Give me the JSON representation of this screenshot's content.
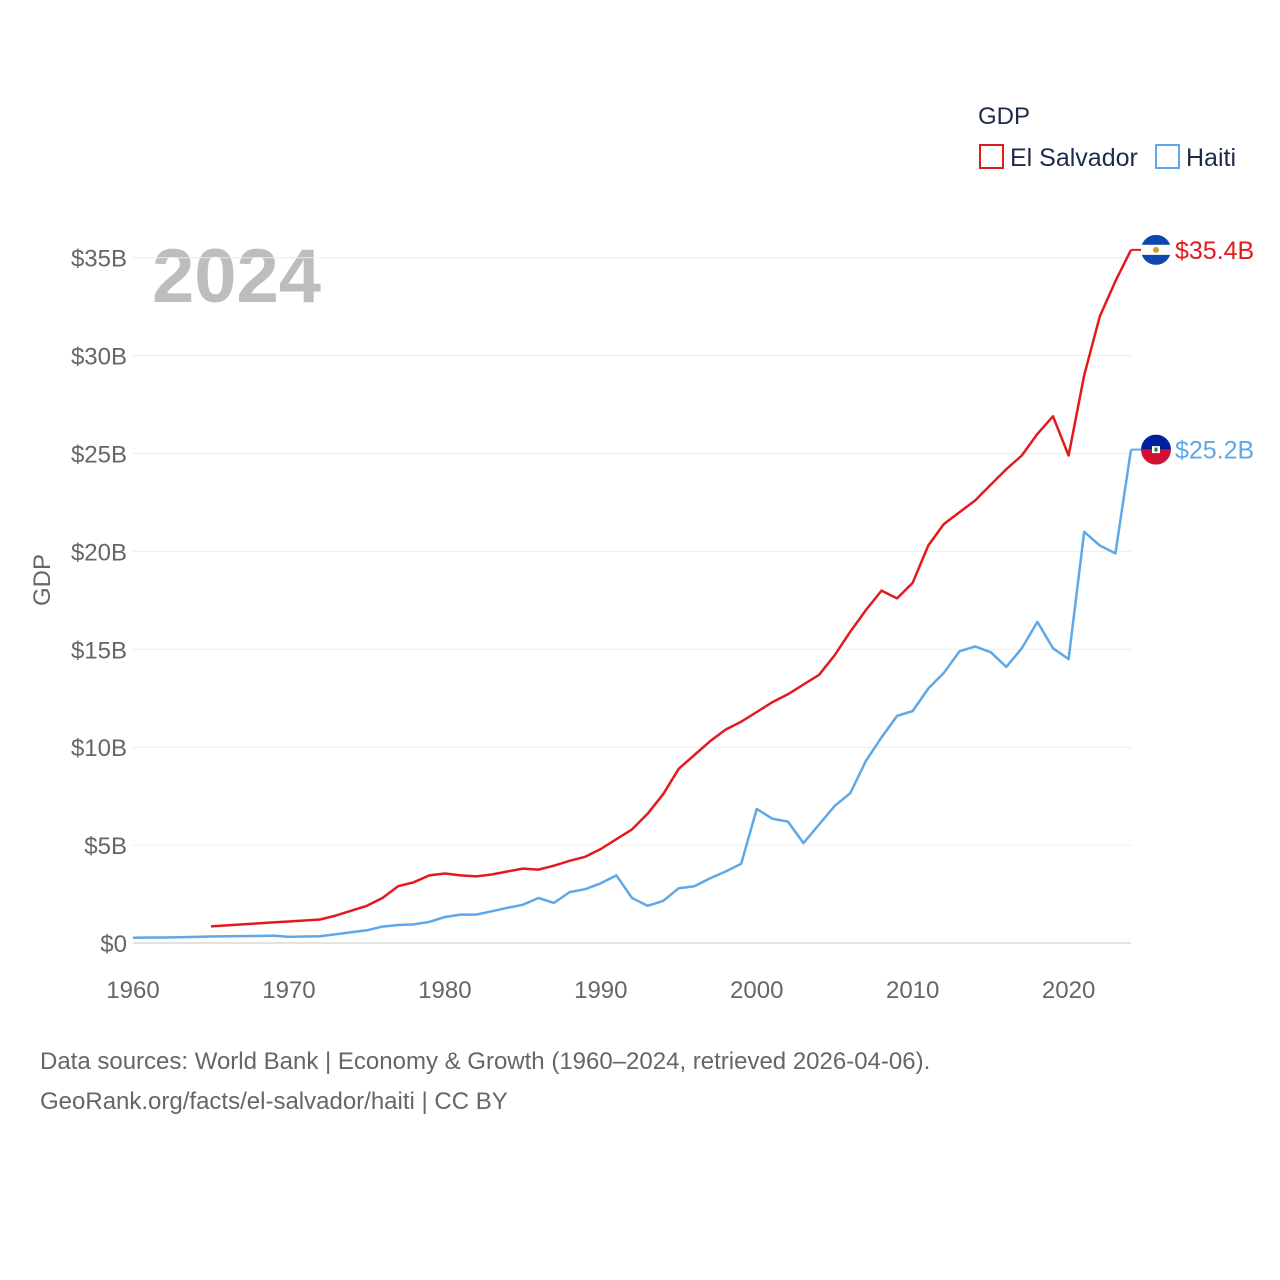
{
  "chart_data": {
    "type": "line",
    "year_label": "2024",
    "ylabel": "GDP",
    "xlim": [
      1960,
      2024
    ],
    "ylim": [
      0,
      35
    ],
    "x_ticks": [
      "1960",
      "1970",
      "1980",
      "1990",
      "2000",
      "2010",
      "2020"
    ],
    "x_tick_values": [
      1960,
      1970,
      1980,
      1990,
      2000,
      2010,
      2020
    ],
    "y_ticks": [
      "$0",
      "$5B",
      "$10B",
      "$15B",
      "$20B",
      "$25B",
      "$30B",
      "$35B"
    ],
    "y_tick_values": [
      0,
      5,
      10,
      15,
      20,
      25,
      30,
      35
    ],
    "legend": {
      "title": "GDP",
      "position": "top-right"
    },
    "series": [
      {
        "name": "El Salvador",
        "color": "#e31a1c",
        "end_label": "$35.4B",
        "flag": "el-salvador-flag-icon",
        "x": [
          1965,
          1966,
          1967,
          1968,
          1969,
          1970,
          1971,
          1972,
          1973,
          1974,
          1975,
          1976,
          1977,
          1978,
          1979,
          1980,
          1981,
          1982,
          1983,
          1984,
          1985,
          1986,
          1987,
          1988,
          1989,
          1990,
          1991,
          1992,
          1993,
          1994,
          1995,
          1996,
          1997,
          1998,
          1999,
          2000,
          2001,
          2002,
          2003,
          2004,
          2005,
          2006,
          2007,
          2008,
          2009,
          2010,
          2011,
          2012,
          2013,
          2014,
          2015,
          2016,
          2017,
          2018,
          2019,
          2020,
          2021,
          2022,
          2023,
          2024
        ],
        "values": [
          0.85,
          0.9,
          0.95,
          1.0,
          1.05,
          1.1,
          1.15,
          1.2,
          1.4,
          1.65,
          1.9,
          2.3,
          2.9,
          3.1,
          3.45,
          3.55,
          3.45,
          3.4,
          3.5,
          3.65,
          3.8,
          3.75,
          3.95,
          4.2,
          4.4,
          4.8,
          5.3,
          5.8,
          6.6,
          7.6,
          8.9,
          9.6,
          10.3,
          10.9,
          11.3,
          11.8,
          12.3,
          12.7,
          13.2,
          13.7,
          14.7,
          15.9,
          17.0,
          18.0,
          17.6,
          18.4,
          20.3,
          21.4,
          22.0,
          22.6,
          23.4,
          24.2,
          24.9,
          26.0,
          26.9,
          24.9,
          29.0,
          32.0,
          33.8,
          35.4
        ]
      },
      {
        "name": "Haiti",
        "color": "#5fa8e8",
        "end_label": "$25.2B",
        "flag": "haiti-flag-icon",
        "x": [
          1960,
          1961,
          1962,
          1963,
          1964,
          1965,
          1966,
          1967,
          1968,
          1969,
          1970,
          1971,
          1972,
          1973,
          1974,
          1975,
          1976,
          1977,
          1978,
          1979,
          1980,
          1981,
          1982,
          1983,
          1984,
          1985,
          1986,
          1987,
          1988,
          1989,
          1990,
          1991,
          1992,
          1993,
          1994,
          1995,
          1996,
          1997,
          1998,
          1999,
          2000,
          2001,
          2002,
          2003,
          2004,
          2005,
          2006,
          2007,
          2008,
          2009,
          2010,
          2011,
          2012,
          2013,
          2014,
          2015,
          2016,
          2017,
          2018,
          2019,
          2020,
          2021,
          2022,
          2023,
          2024
        ],
        "values": [
          0.27,
          0.28,
          0.28,
          0.29,
          0.31,
          0.33,
          0.34,
          0.35,
          0.36,
          0.38,
          0.31,
          0.33,
          0.34,
          0.45,
          0.55,
          0.65,
          0.84,
          0.92,
          0.95,
          1.08,
          1.33,
          1.45,
          1.45,
          1.62,
          1.8,
          1.95,
          2.3,
          2.05,
          2.6,
          2.75,
          3.05,
          3.45,
          2.3,
          1.9,
          2.15,
          2.8,
          2.9,
          3.3,
          3.65,
          4.05,
          6.85,
          6.35,
          6.2,
          5.1,
          6.05,
          7.0,
          7.65,
          9.3,
          10.5,
          11.6,
          11.85,
          13.0,
          13.8,
          14.9,
          15.15,
          14.85,
          14.1,
          15.05,
          16.4,
          15.05,
          14.5,
          21.0,
          20.3,
          19.9,
          25.2
        ]
      }
    ]
  },
  "footer": {
    "line1": "Data sources: World Bank | Economy & Growth (1960–2024, retrieved 2026-04-06).",
    "line2": "GeoRank.org/facts/el-salvador/haiti | CC BY"
  }
}
